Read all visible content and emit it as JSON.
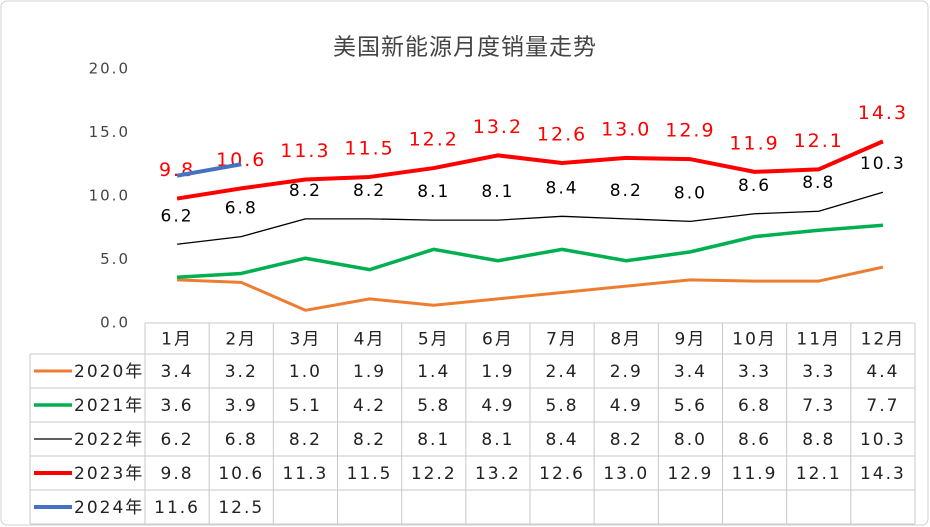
{
  "chart_data": {
    "type": "line",
    "title": "美国新能源月度销量走势",
    "categories": [
      "1月",
      "2月",
      "3月",
      "4月",
      "5月",
      "6月",
      "7月",
      "8月",
      "9月",
      "10月",
      "11月",
      "12月"
    ],
    "ylim": [
      0,
      20
    ],
    "yticks": [
      {
        "value": 0,
        "label": "0.0"
      },
      {
        "value": 5,
        "label": "5.0"
      },
      {
        "value": 10,
        "label": "10.0"
      },
      {
        "value": 15,
        "label": "15.0"
      },
      {
        "value": 20,
        "label": "20.0"
      }
    ],
    "grid": false,
    "series": [
      {
        "name": "2020年",
        "color": "#ED7D31",
        "width": 3,
        "data_labels": false,
        "values": [
          3.4,
          3.2,
          1.0,
          1.9,
          1.4,
          1.9,
          2.4,
          2.9,
          3.4,
          3.3,
          3.3,
          4.4
        ],
        "value_labels": [
          "3.4",
          "3.2",
          "1.0",
          "1.9",
          "1.4",
          "1.9",
          "2.4",
          "2.9",
          "3.4",
          "3.3",
          "3.3",
          "4.4"
        ]
      },
      {
        "name": "2021年",
        "color": "#00B050",
        "width": 3.5,
        "data_labels": false,
        "values": [
          3.6,
          3.9,
          5.1,
          4.2,
          5.8,
          4.9,
          5.8,
          4.9,
          5.6,
          6.8,
          7.3,
          7.7
        ],
        "value_labels": [
          "3.6",
          "3.9",
          "5.1",
          "4.2",
          "5.8",
          "4.9",
          "5.8",
          "4.9",
          "5.6",
          "6.8",
          "7.3",
          "7.7"
        ]
      },
      {
        "name": "2022年",
        "color": "#000000",
        "width": 1.3,
        "data_labels": true,
        "values": [
          6.2,
          6.8,
          8.2,
          8.2,
          8.1,
          8.1,
          8.4,
          8.2,
          8.0,
          8.6,
          8.8,
          10.3
        ],
        "value_labels": [
          "6.2",
          "6.8",
          "8.2",
          "8.2",
          "8.1",
          "8.1",
          "8.4",
          "8.2",
          "8.0",
          "8.6",
          "8.8",
          "10.3"
        ]
      },
      {
        "name": "2023年",
        "color": "#FF0000",
        "width": 4,
        "data_labels": true,
        "values": [
          9.8,
          10.6,
          11.3,
          11.5,
          12.2,
          13.2,
          12.6,
          13.0,
          12.9,
          11.9,
          12.1,
          14.3
        ],
        "value_labels": [
          "9.8",
          "10.6",
          "11.3",
          "11.5",
          "12.2",
          "13.2",
          "12.6",
          "13.0",
          "12.9",
          "11.9",
          "12.1",
          "14.3"
        ]
      },
      {
        "name": "2024年",
        "color": "#4472C4",
        "width": 4,
        "data_labels": false,
        "values": [
          11.6,
          12.5,
          null,
          null,
          null,
          null,
          null,
          null,
          null,
          null,
          null,
          null
        ],
        "value_labels": [
          "11.6",
          "12.5",
          null,
          null,
          null,
          null,
          null,
          null,
          null,
          null,
          null,
          null
        ]
      }
    ]
  }
}
